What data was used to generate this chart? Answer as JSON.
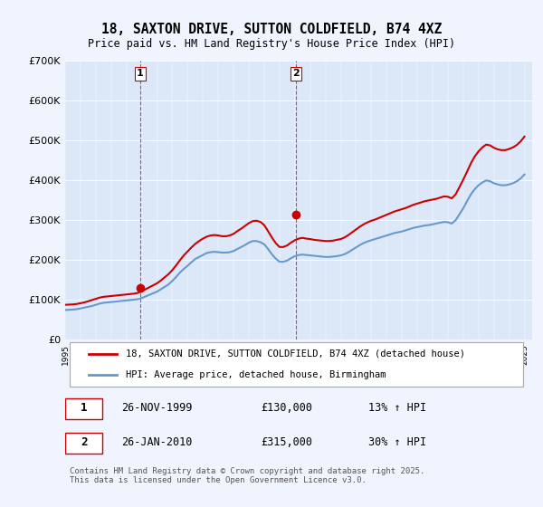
{
  "title": "18, SAXTON DRIVE, SUTTON COLDFIELD, B74 4XZ",
  "subtitle": "Price paid vs. HM Land Registry's House Price Index (HPI)",
  "background_color": "#f0f4ff",
  "plot_bg_color": "#dce8f8",
  "red_line_color": "#cc0000",
  "blue_line_color": "#6699cc",
  "vline_color": "#cc0000",
  "ylabel": "",
  "ylim": [
    0,
    700000
  ],
  "yticks": [
    0,
    100000,
    200000,
    300000,
    400000,
    500000,
    600000,
    700000
  ],
  "ytick_labels": [
    "£0",
    "£100K",
    "£200K",
    "£300K",
    "£400K",
    "£500K",
    "£600K",
    "£700K"
  ],
  "xlim_start": 1995.0,
  "xlim_end": 2025.5,
  "sale1_x": 1999.9,
  "sale1_y": 130000,
  "sale2_x": 2010.07,
  "sale2_y": 315000,
  "legend_entries": [
    "18, SAXTON DRIVE, SUTTON COLDFIELD, B74 4XZ (detached house)",
    "HPI: Average price, detached house, Birmingham"
  ],
  "table_rows": [
    {
      "num": "1",
      "date": "26-NOV-1999",
      "price": "£130,000",
      "hpi": "13% ↑ HPI"
    },
    {
      "num": "2",
      "date": "26-JAN-2010",
      "price": "£315,000",
      "hpi": "30% ↑ HPI"
    }
  ],
  "footer": "Contains HM Land Registry data © Crown copyright and database right 2025.\nThis data is licensed under the Open Government Licence v3.0.",
  "hpi_data_x": [
    1995.0,
    1995.25,
    1995.5,
    1995.75,
    1996.0,
    1996.25,
    1996.5,
    1996.75,
    1997.0,
    1997.25,
    1997.5,
    1997.75,
    1998.0,
    1998.25,
    1998.5,
    1998.75,
    1999.0,
    1999.25,
    1999.5,
    1999.75,
    2000.0,
    2000.25,
    2000.5,
    2000.75,
    2001.0,
    2001.25,
    2001.5,
    2001.75,
    2002.0,
    2002.25,
    2002.5,
    2002.75,
    2003.0,
    2003.25,
    2003.5,
    2003.75,
    2004.0,
    2004.25,
    2004.5,
    2004.75,
    2005.0,
    2005.25,
    2005.5,
    2005.75,
    2006.0,
    2006.25,
    2006.5,
    2006.75,
    2007.0,
    2007.25,
    2007.5,
    2007.75,
    2008.0,
    2008.25,
    2008.5,
    2008.75,
    2009.0,
    2009.25,
    2009.5,
    2009.75,
    2010.0,
    2010.25,
    2010.5,
    2010.75,
    2011.0,
    2011.25,
    2011.5,
    2011.75,
    2012.0,
    2012.25,
    2012.5,
    2012.75,
    2013.0,
    2013.25,
    2013.5,
    2013.75,
    2014.0,
    2014.25,
    2014.5,
    2014.75,
    2015.0,
    2015.25,
    2015.5,
    2015.75,
    2016.0,
    2016.25,
    2016.5,
    2016.75,
    2017.0,
    2017.25,
    2017.5,
    2017.75,
    2018.0,
    2018.25,
    2018.5,
    2018.75,
    2019.0,
    2019.25,
    2019.5,
    2019.75,
    2020.0,
    2020.25,
    2020.5,
    2020.75,
    2021.0,
    2021.25,
    2021.5,
    2021.75,
    2022.0,
    2022.25,
    2022.5,
    2022.75,
    2023.0,
    2023.25,
    2023.5,
    2023.75,
    2024.0,
    2024.25,
    2024.5,
    2024.75,
    2025.0
  ],
  "hpi_data_y": [
    75000,
    75500,
    76000,
    77000,
    79000,
    81000,
    83000,
    85000,
    88000,
    91000,
    93000,
    94000,
    95000,
    96000,
    97000,
    98000,
    99000,
    100000,
    101000,
    102000,
    105000,
    109000,
    113000,
    117000,
    121000,
    127000,
    133000,
    139000,
    148000,
    158000,
    169000,
    178000,
    186000,
    195000,
    203000,
    208000,
    213000,
    218000,
    220000,
    221000,
    220000,
    219000,
    219000,
    220000,
    223000,
    228000,
    233000,
    238000,
    244000,
    248000,
    248000,
    245000,
    240000,
    228000,
    215000,
    204000,
    196000,
    196000,
    199000,
    205000,
    210000,
    213000,
    214000,
    213000,
    212000,
    211000,
    210000,
    209000,
    208000,
    208000,
    209000,
    210000,
    212000,
    215000,
    220000,
    226000,
    232000,
    238000,
    243000,
    247000,
    250000,
    253000,
    256000,
    259000,
    262000,
    265000,
    268000,
    270000,
    272000,
    275000,
    278000,
    281000,
    283000,
    285000,
    287000,
    288000,
    290000,
    292000,
    294000,
    296000,
    295000,
    292000,
    300000,
    315000,
    330000,
    348000,
    365000,
    378000,
    388000,
    395000,
    400000,
    398000,
    393000,
    390000,
    388000,
    388000,
    390000,
    393000,
    398000,
    405000,
    415000
  ],
  "red_data_x": [
    1995.0,
    1995.25,
    1995.5,
    1995.75,
    1996.0,
    1996.25,
    1996.5,
    1996.75,
    1997.0,
    1997.25,
    1997.5,
    1997.75,
    1998.0,
    1998.25,
    1998.5,
    1998.75,
    1999.0,
    1999.25,
    1999.5,
    1999.75,
    2000.0,
    2000.25,
    2000.5,
    2000.75,
    2001.0,
    2001.25,
    2001.5,
    2001.75,
    2002.0,
    2002.25,
    2002.5,
    2002.75,
    2003.0,
    2003.25,
    2003.5,
    2003.75,
    2004.0,
    2004.25,
    2004.5,
    2004.75,
    2005.0,
    2005.25,
    2005.5,
    2005.75,
    2006.0,
    2006.25,
    2006.5,
    2006.75,
    2007.0,
    2007.25,
    2007.5,
    2007.75,
    2008.0,
    2008.25,
    2008.5,
    2008.75,
    2009.0,
    2009.25,
    2009.5,
    2009.75,
    2010.0,
    2010.25,
    2010.5,
    2010.75,
    2011.0,
    2011.25,
    2011.5,
    2011.75,
    2012.0,
    2012.25,
    2012.5,
    2012.75,
    2013.0,
    2013.25,
    2013.5,
    2013.75,
    2014.0,
    2014.25,
    2014.5,
    2014.75,
    2015.0,
    2015.25,
    2015.5,
    2015.75,
    2016.0,
    2016.25,
    2016.5,
    2016.75,
    2017.0,
    2017.25,
    2017.5,
    2017.75,
    2018.0,
    2018.25,
    2018.5,
    2018.75,
    2019.0,
    2019.25,
    2019.5,
    2019.75,
    2020.0,
    2020.25,
    2020.5,
    2020.75,
    2021.0,
    2021.25,
    2021.5,
    2021.75,
    2022.0,
    2022.25,
    2022.5,
    2022.75,
    2023.0,
    2023.25,
    2023.5,
    2023.75,
    2024.0,
    2024.25,
    2024.5,
    2024.75,
    2025.0
  ],
  "red_data_y": [
    88000,
    88500,
    89000,
    90000,
    92000,
    94000,
    97000,
    100000,
    103000,
    106000,
    108000,
    109000,
    110000,
    111000,
    112000,
    113000,
    114000,
    115000,
    116000,
    118000,
    122000,
    127000,
    132000,
    137000,
    142000,
    149000,
    157000,
    165000,
    175000,
    187000,
    200000,
    212000,
    222000,
    232000,
    241000,
    248000,
    254000,
    259000,
    262000,
    263000,
    262000,
    260000,
    260000,
    262000,
    266000,
    273000,
    279000,
    286000,
    293000,
    298000,
    299000,
    296000,
    288000,
    273000,
    257000,
    243000,
    233000,
    233000,
    237000,
    244000,
    250000,
    254000,
    256000,
    254000,
    253000,
    251000,
    250000,
    249000,
    248000,
    248000,
    249000,
    251000,
    253000,
    257000,
    263000,
    270000,
    277000,
    284000,
    290000,
    295000,
    299000,
    302000,
    306000,
    310000,
    314000,
    318000,
    322000,
    325000,
    328000,
    331000,
    335000,
    339000,
    342000,
    345000,
    348000,
    350000,
    352000,
    354000,
    357000,
    360000,
    359000,
    355000,
    365000,
    383000,
    402000,
    422000,
    443000,
    460000,
    473000,
    483000,
    490000,
    488000,
    482000,
    478000,
    476000,
    476000,
    479000,
    483000,
    489000,
    498000,
    510000
  ]
}
